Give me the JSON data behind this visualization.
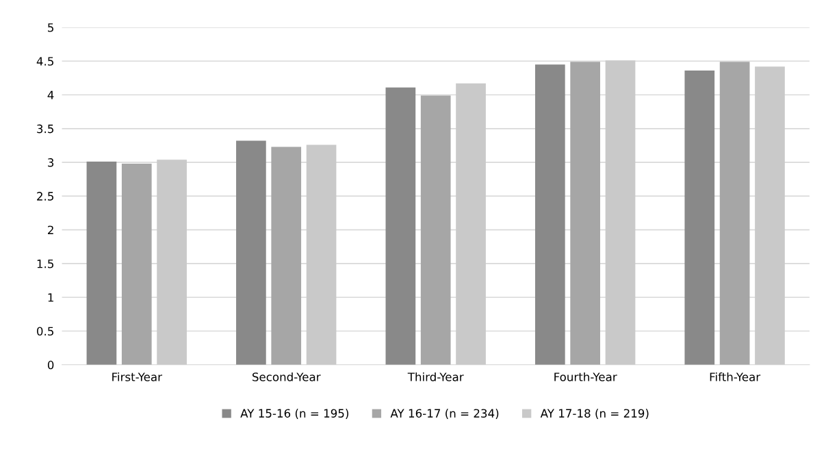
{
  "chart_data": {
    "type": "bar",
    "categories": [
      "First-Year",
      "Second-Year",
      "Third-Year",
      "Fourth-Year",
      "Fifth-Year"
    ],
    "series": [
      {
        "name": "AY 15-16 (n = 195)",
        "color": "#898989",
        "values": [
          3.01,
          3.32,
          4.11,
          4.45,
          4.36
        ]
      },
      {
        "name": "AY 16-17 (n = 234)",
        "color": "#a6a6a6",
        "values": [
          2.98,
          3.23,
          3.99,
          4.49,
          4.49
        ]
      },
      {
        "name": "AY 17-18 (n = 219)",
        "color": "#c9c9c9",
        "values": [
          3.04,
          3.26,
          4.17,
          4.51,
          4.42
        ]
      }
    ],
    "ylim": [
      0,
      5
    ],
    "yticks": [
      0,
      0.5,
      1,
      1.5,
      2,
      2.5,
      3,
      3.5,
      4,
      4.5,
      5
    ],
    "grid": "y",
    "legend": "bottom"
  }
}
